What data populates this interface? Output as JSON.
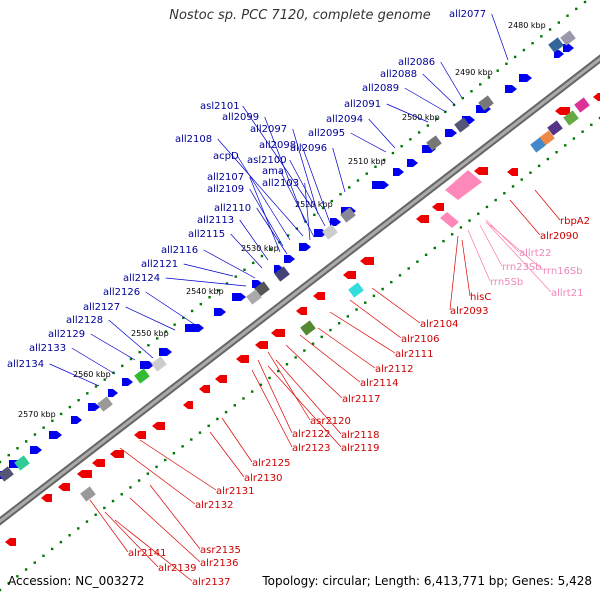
{
  "title": "Nostoc sp. PCC 7120, complete genome",
  "footer": {
    "accession": "Accession: NC_003272",
    "summary": "Topology: circular; Length: 6,413,771 bp; Genes: 5,428"
  },
  "colors": {
    "forward_gene": "#0000ee",
    "reverse_gene": "#ee0000",
    "rna_gene": "#ff88bb",
    "backbone": "#888888",
    "tick_dot": "#007700"
  },
  "kbp_ticks": [
    "2480 kbp",
    "2490 kbp",
    "2500 kbp",
    "2510 kbp",
    "2520 kbp",
    "2530 kbp",
    "2540 kbp",
    "2550 kbp",
    "2560 kbp",
    "2570 kbp"
  ],
  "labels_forward": [
    "all2077",
    "all2086",
    "all2088",
    "all2089",
    "all2091",
    "asl2101",
    "all2094",
    "all2099",
    "all2097",
    "all2095",
    "all2108",
    "all2098",
    "all2096",
    "acpD",
    "asl2100",
    "ama",
    "all2107",
    "all2103",
    "all2109",
    "all2110",
    "all2113",
    "all2115",
    "all2116",
    "all2121",
    "all2124",
    "all2126",
    "all2127",
    "all2128",
    "all2129",
    "all2133",
    "all2134"
  ],
  "labels_reverse": [
    "rbpA2",
    "alr2090",
    "allrt22",
    "rrn16Sb",
    "rrn23Sb",
    "allrt21",
    "rrn5Sb",
    "hisC",
    "alr2093",
    "alr2104",
    "alr2106",
    "alr2111",
    "alr2112",
    "alr2114",
    "alr2117",
    "asr2120",
    "alr2118",
    "alr2122",
    "alr2119",
    "alr2123",
    "alr2125",
    "alr2130",
    "alr2131",
    "alr2132",
    "asr2135",
    "alr2136",
    "alr2141",
    "alr2139",
    "alr2137"
  ],
  "rna_labels": [
    "allrt22",
    "rrn16Sb",
    "rrn23Sb",
    "allrt21",
    "rrn5Sb"
  ]
}
